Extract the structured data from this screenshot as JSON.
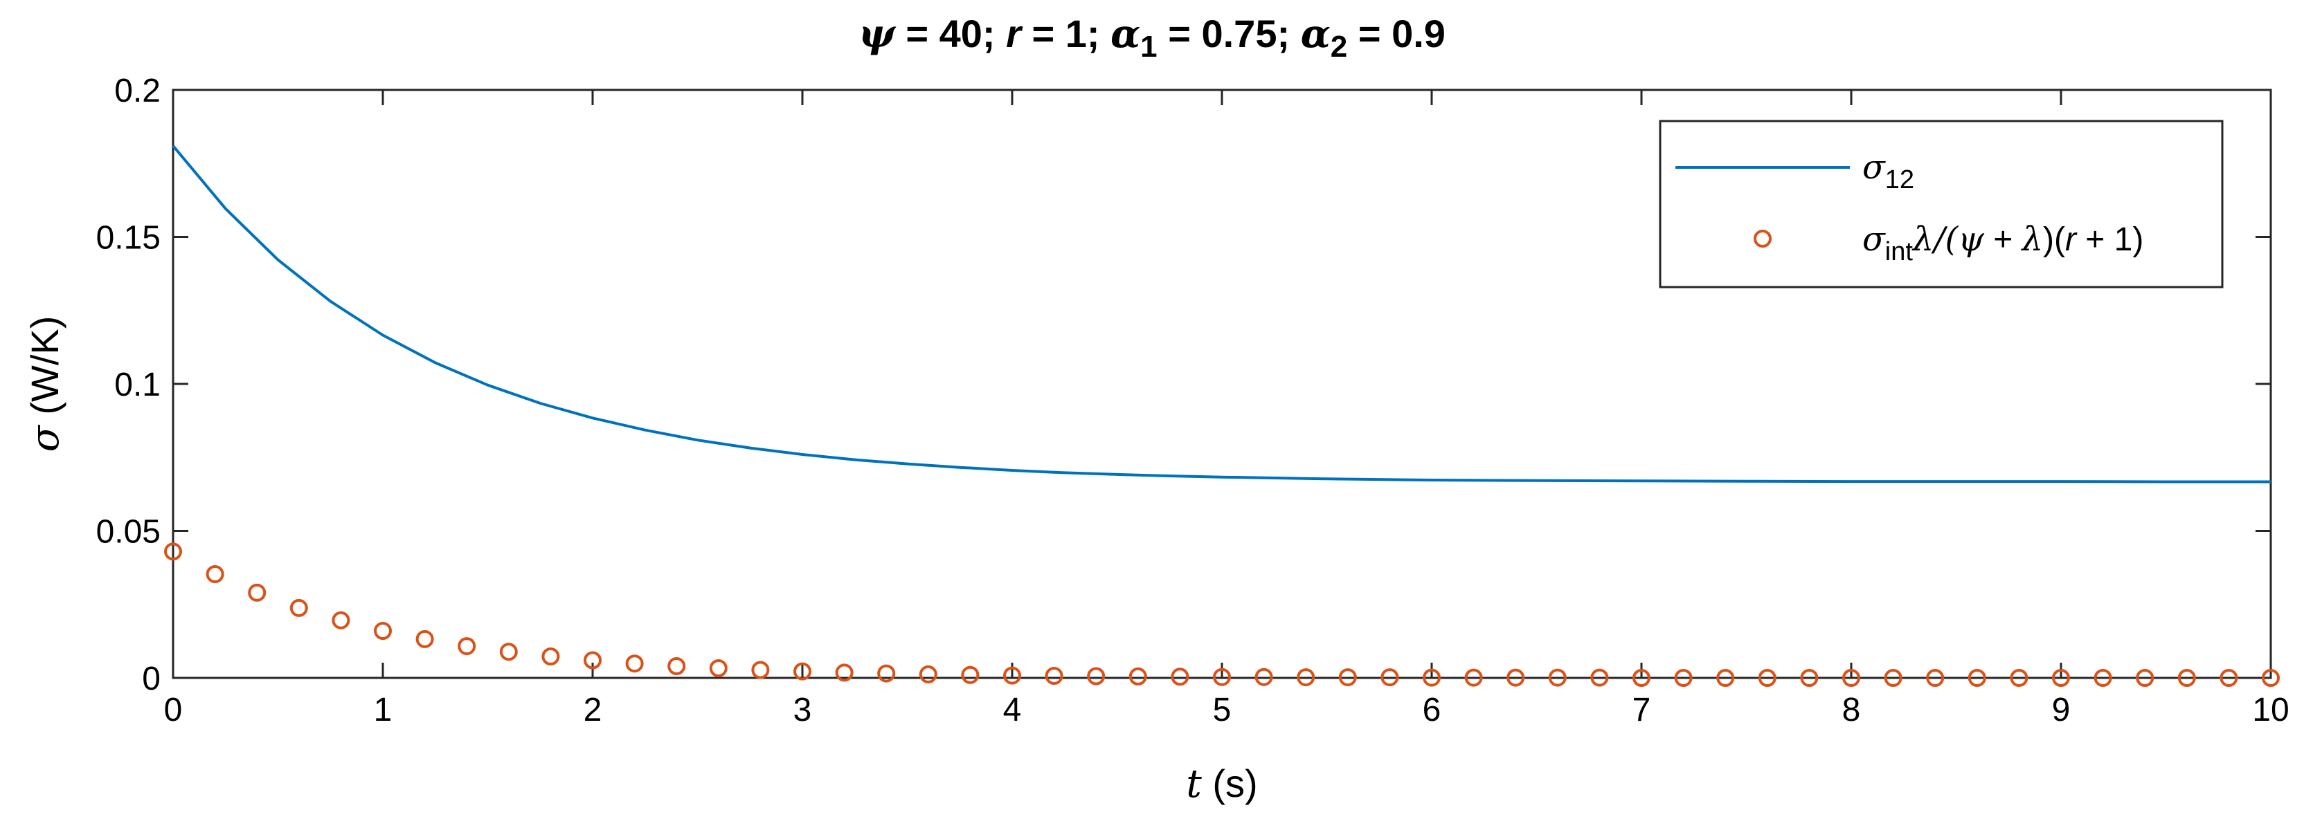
{
  "chart_data": {
    "type": "line",
    "title": {
      "psi_sym": "ψ",
      "psi_val": " = 40; ",
      "r_sym": "r",
      "r_val": " = 1; ",
      "a1_sym": "α",
      "a1_sub": "1",
      "a1_val": " = 0.75; ",
      "a2_sym": "α",
      "a2_sub": "2",
      "a2_val": " = 0.9"
    },
    "xlabel": {
      "var": "t",
      "unit": " (s)"
    },
    "ylabel": {
      "var": "σ",
      "unit": " (W/K)"
    },
    "xlim": [
      0,
      10
    ],
    "ylim": [
      0,
      0.2
    ],
    "xticks": [
      "0",
      "1",
      "2",
      "3",
      "4",
      "5",
      "6",
      "7",
      "8",
      "9",
      "10"
    ],
    "yticks": [
      "0",
      "0.05",
      "0.1",
      "0.15",
      "0.2"
    ],
    "grid": false,
    "legend_position": "top-right",
    "series": [
      {
        "name": "σ12",
        "legend": {
          "sym": "σ",
          "sub": "12"
        },
        "style": "line",
        "color": "#0072BD",
        "x": [
          0,
          0.25,
          0.5,
          0.75,
          1,
          1.25,
          1.5,
          1.75,
          2,
          2.25,
          2.5,
          2.75,
          3,
          3.25,
          3.5,
          3.75,
          4,
          4.25,
          4.5,
          4.75,
          5,
          5.5,
          6,
          6.5,
          7,
          7.5,
          8,
          8.5,
          9,
          9.5,
          10
        ],
        "y": [
          0.181,
          0.1596,
          0.1422,
          0.1281,
          0.1166,
          0.1072,
          0.0996,
          0.0934,
          0.0884,
          0.0843,
          0.0809,
          0.0782,
          0.076,
          0.0742,
          0.0728,
          0.0716,
          0.0706,
          0.0698,
          0.0692,
          0.0687,
          0.0683,
          0.0677,
          0.0673,
          0.0671,
          0.067,
          0.0669,
          0.0668,
          0.0668,
          0.0668,
          0.0667,
          0.0667
        ]
      },
      {
        "name": "σintλ/(ψ + λ)(r + 1)",
        "legend": {
          "sym": "σ",
          "sub": "int",
          "rest1": "λ/(",
          "psi": "ψ",
          "rest2": " + ",
          "lam": "λ",
          "rest3": ")(",
          "r": "r",
          "rest4": " + 1)"
        },
        "style": "markers",
        "color": "#D95319",
        "x": [
          0,
          0.2,
          0.4,
          0.6,
          0.8,
          1,
          1.2,
          1.4,
          1.6,
          1.8,
          2,
          2.2,
          2.4,
          2.6,
          2.8,
          3,
          3.2,
          3.4,
          3.6,
          3.8,
          4,
          4.2,
          4.4,
          4.6,
          4.8,
          5,
          5.2,
          5.4,
          5.6,
          5.8,
          6,
          6.2,
          6.4,
          6.6,
          6.8,
          7,
          7.2,
          7.4,
          7.6,
          7.8,
          8,
          8.2,
          8.4,
          8.6,
          8.8,
          9,
          9.2,
          9.4,
          9.6,
          9.8,
          10
        ],
        "y": [
          0.043,
          0.0353,
          0.029,
          0.0238,
          0.0196,
          0.016,
          0.0132,
          0.0108,
          0.0089,
          0.0073,
          0.006,
          0.0049,
          0.004,
          0.0033,
          0.0027,
          0.0022,
          0.0018,
          0.0015,
          0.0012,
          0.001,
          0.0008,
          0.0007,
          0.0006,
          0.0005,
          0.0004,
          0.0003,
          0.0003,
          0.0002,
          0.0002,
          0.0002,
          0.0001,
          0.0001,
          0.0001,
          0.0001,
          0.0001,
          0,
          0,
          0,
          0,
          0,
          0,
          0,
          0,
          0,
          0,
          0,
          0,
          0,
          0,
          0,
          0
        ]
      }
    ]
  }
}
